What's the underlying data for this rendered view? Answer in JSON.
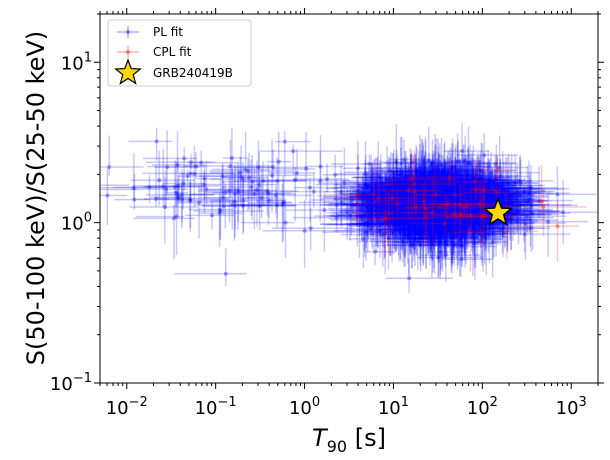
{
  "chart_data": {
    "type": "scatter",
    "x_scale": "log",
    "y_scale": "log",
    "xlim": [
      0.005,
      2000
    ],
    "ylim": [
      0.1,
      20
    ],
    "xlabel": "T90 [s]",
    "ylabel": "S(50-100 keV)/S(25-50 keV)",
    "legend_position": "top-left",
    "grid": false,
    "x_ticks": [
      {
        "value": 0.01,
        "base": "10",
        "exp": "−2"
      },
      {
        "value": 0.1,
        "base": "10",
        "exp": "−1"
      },
      {
        "value": 1,
        "base": "10",
        "exp": "0"
      },
      {
        "value": 10,
        "base": "10",
        "exp": "1"
      },
      {
        "value": 100,
        "base": "10",
        "exp": "2"
      },
      {
        "value": 1000,
        "base": "10",
        "exp": "3"
      }
    ],
    "y_ticks": [
      {
        "value": 0.1,
        "base": "10",
        "exp": "−1"
      },
      {
        "value": 1,
        "base": "10",
        "exp": "0"
      },
      {
        "value": 10,
        "base": "10",
        "exp": "1"
      }
    ],
    "series": [
      {
        "name": "PL fit",
        "color": "#0000ff",
        "marker": "circle",
        "clusters": [
          {
            "n": 95,
            "x_log_mean": -1.0,
            "x_log_sd": 0.65,
            "y_log_mean": 0.22,
            "y_log_sd": 0.12
          },
          {
            "n": 1500,
            "x_log_mean": 1.5,
            "x_log_sd": 0.42,
            "y_log_mean": 0.12,
            "y_log_sd": 0.1
          }
        ],
        "points_sample": [
          {
            "x": 0.012,
            "y": 1.65
          },
          {
            "x": 0.13,
            "y": 0.48
          },
          {
            "x": 0.6,
            "y": 3.2
          },
          {
            "x": 15,
            "y": 0.45
          },
          {
            "x": 120,
            "y": 0.85
          },
          {
            "x": 700,
            "y": 1.5
          }
        ]
      },
      {
        "name": "CPL fit",
        "color": "#ff0000",
        "marker": "circle",
        "clusters": [
          {
            "n": 40,
            "x_log_mean": 1.6,
            "x_log_sd": 0.5,
            "y_log_mean": 0.12,
            "y_log_sd": 0.08
          }
        ],
        "points_sample": [
          {
            "x": 700,
            "y": 0.95
          },
          {
            "x": 6,
            "y": 1.5
          }
        ]
      },
      {
        "name": "GRB240419B",
        "color": "#ffd700",
        "marker": "star",
        "points": [
          {
            "x": 150,
            "y": 1.15
          }
        ]
      }
    ]
  }
}
